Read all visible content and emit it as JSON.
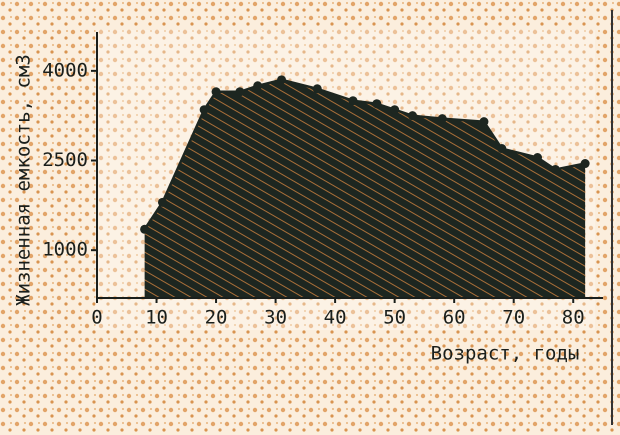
{
  "chart_data": {
    "type": "area",
    "x_label": "Возраст, годы",
    "y_label": "Жизненная емкость, см3",
    "x": [
      8,
      11,
      18,
      20,
      24,
      27,
      31,
      37,
      43,
      47,
      50,
      53,
      58,
      65,
      68,
      74,
      77,
      82
    ],
    "values": [
      1350,
      1800,
      3350,
      3650,
      3650,
      3750,
      3850,
      3700,
      3500,
      3450,
      3350,
      3250,
      3200,
      3150,
      2700,
      2550,
      2350,
      2450
    ],
    "color": "#1d2620",
    "xlim": [
      0,
      85
    ],
    "ylim": [
      200,
      4650
    ],
    "xticks": [
      0,
      10,
      20,
      30,
      40,
      50,
      60,
      70,
      80
    ],
    "yticks": [
      1000,
      2500,
      4000
    ]
  }
}
